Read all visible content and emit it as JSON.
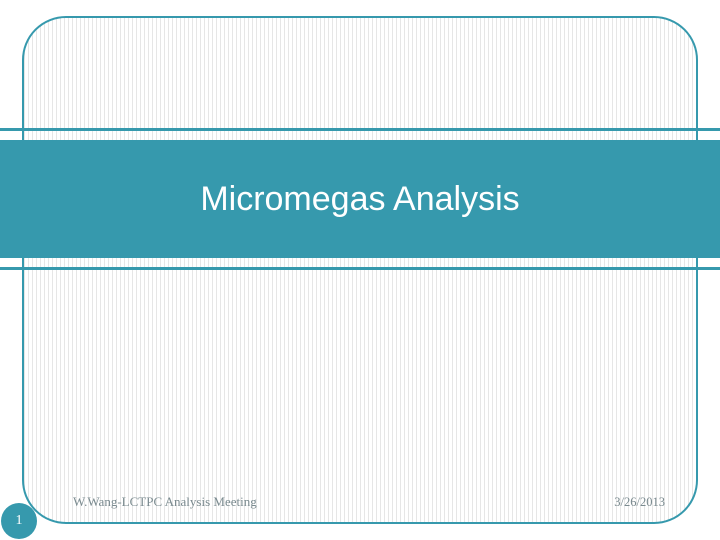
{
  "colors": {
    "accent": "#3699ad",
    "frame_border": "#3699ad",
    "text_footer": "#7a8a8f",
    "background": "#ffffff"
  },
  "title": "Micromegas Analysis",
  "footer": {
    "author": "W.Wang-LCTPC Analysis Meeting",
    "date": "3/26/2013"
  },
  "page_number": "1"
}
